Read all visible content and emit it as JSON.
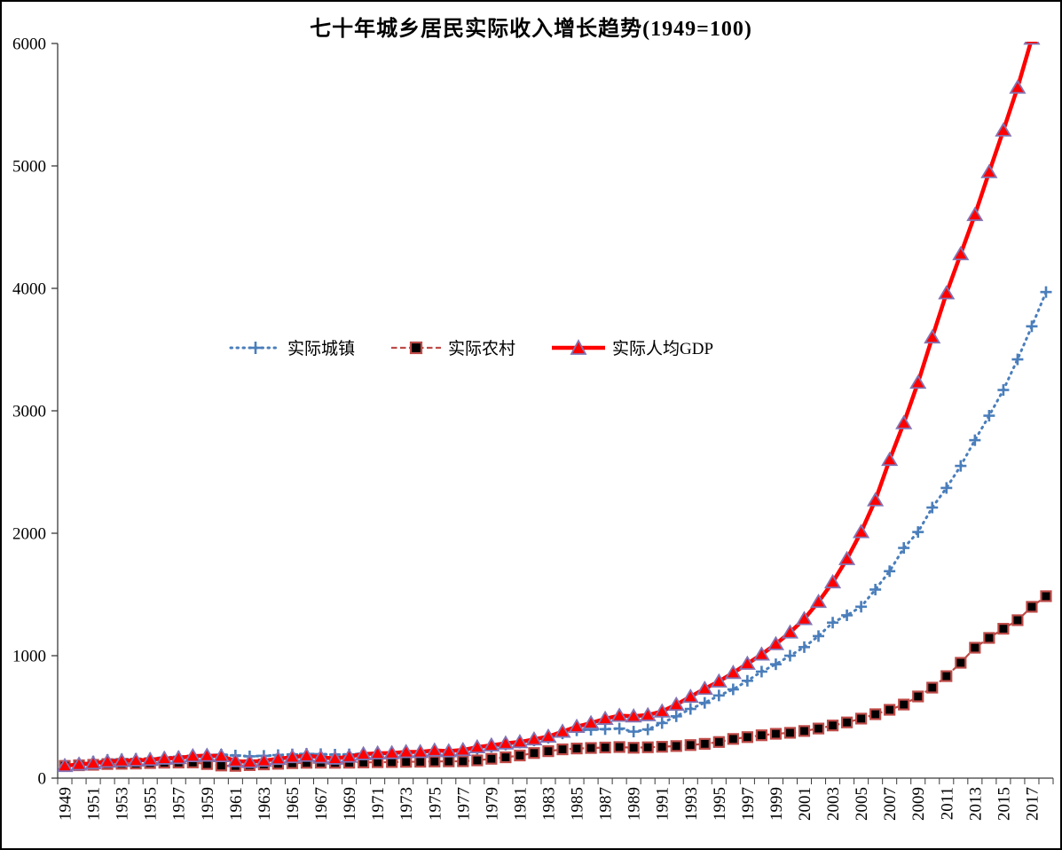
{
  "figure": {
    "background": "#ffffff",
    "border_color": "#000000"
  },
  "chart_data": {
    "type": "line",
    "title": "七十年城乡居民实际收入增长趋势(1949=100)",
    "xlabel": "",
    "ylabel": "",
    "ylim": [
      0,
      6000
    ],
    "y_ticks": [
      "0",
      "1000",
      "2000",
      "3000",
      "4000",
      "5000",
      "6000"
    ],
    "grid": false,
    "legend_position": "inside-left-middle",
    "x_years": [
      1949,
      1950,
      1951,
      1952,
      1953,
      1954,
      1955,
      1956,
      1957,
      1958,
      1959,
      1960,
      1961,
      1962,
      1963,
      1964,
      1965,
      1966,
      1967,
      1968,
      1969,
      1970,
      1971,
      1972,
      1973,
      1974,
      1975,
      1976,
      1977,
      1978,
      1979,
      1980,
      1981,
      1982,
      1983,
      1984,
      1985,
      1986,
      1987,
      1988,
      1989,
      1990,
      1991,
      1992,
      1993,
      1994,
      1995,
      1996,
      1997,
      1998,
      1999,
      2000,
      2001,
      2002,
      2003,
      2004,
      2005,
      2006,
      2007,
      2008,
      2009,
      2010,
      2011,
      2012,
      2013,
      2014,
      2015,
      2016,
      2017,
      2018
    ],
    "x_axis_labels": [
      "1949",
      "1951",
      "1953",
      "1955",
      "1957",
      "1959",
      "1961",
      "1963",
      "1965",
      "1967",
      "1969",
      "1971",
      "1973",
      "1975",
      "1977",
      "1979",
      "1981",
      "1983",
      "1985",
      "1987",
      "1989",
      "1991",
      "1993",
      "1995",
      "1997",
      "1999",
      "2001",
      "2003",
      "2005",
      "2007",
      "2009",
      "2011",
      "2013",
      "2015",
      "2017"
    ],
    "series": [
      {
        "name": "实际城镇",
        "color": "#4a7ebb",
        "line_style": "dotted",
        "marker": "plus",
        "values": [
          100,
          120,
          135,
          148,
          153,
          157,
          160,
          168,
          175,
          182,
          188,
          192,
          185,
          178,
          182,
          188,
          194,
          198,
          196,
          192,
          194,
          200,
          204,
          208,
          213,
          216,
          220,
          224,
          228,
          240,
          256,
          274,
          290,
          308,
          330,
          365,
          390,
          395,
          400,
          405,
          380,
          398,
          450,
          505,
          565,
          615,
          675,
          725,
          795,
          870,
          930,
          1000,
          1070,
          1160,
          1270,
          1330,
          1400,
          1540,
          1690,
          1880,
          2010,
          2210,
          2370,
          2550,
          2760,
          2960,
          3170,
          3420,
          3690,
          3970
        ]
      },
      {
        "name": "实际农村",
        "color": "#be4b48",
        "marker_fill": "#000000",
        "line_style": "dashed",
        "marker": "square",
        "values": [
          100,
          105,
          109,
          115,
          117,
          119,
          123,
          126,
          127,
          128,
          115,
          103,
          100,
          106,
          112,
          117,
          122,
          125,
          126,
          125,
          126,
          128,
          130,
          131,
          133,
          134,
          136,
          137,
          138,
          145,
          158,
          170,
          185,
          205,
          220,
          235,
          242,
          246,
          250,
          254,
          248,
          252,
          256,
          262,
          270,
          280,
          295,
          320,
          335,
          350,
          362,
          370,
          385,
          405,
          430,
          455,
          486,
          522,
          558,
          601,
          667,
          739,
          833,
          942,
          1065,
          1145,
          1220,
          1290,
          1399,
          1486
        ]
      },
      {
        "name": "实际人均GDP",
        "color": "#ff0000",
        "marker_fill": "#ff0000",
        "marker_stroke": "#8274b4",
        "line_style": "solid",
        "marker": "triangle",
        "values": [
          100,
          112,
          122,
          135,
          141,
          144,
          150,
          160,
          164,
          180,
          184,
          180,
          140,
          132,
          142,
          158,
          172,
          183,
          170,
          160,
          176,
          196,
          203,
          205,
          214,
          214,
          226,
          220,
          230,
          253,
          268,
          284,
          295,
          317,
          340,
          380,
          420,
          450,
          485,
          510,
          505,
          515,
          545,
          600,
          665,
          730,
          790,
          860,
          935,
          1010,
          1095,
          1190,
          1300,
          1440,
          1600,
          1790,
          2010,
          2270,
          2600,
          2900,
          3230,
          3600,
          3960,
          4280,
          4600,
          4950,
          5290,
          5640,
          6040,
          6470
        ]
      }
    ]
  }
}
